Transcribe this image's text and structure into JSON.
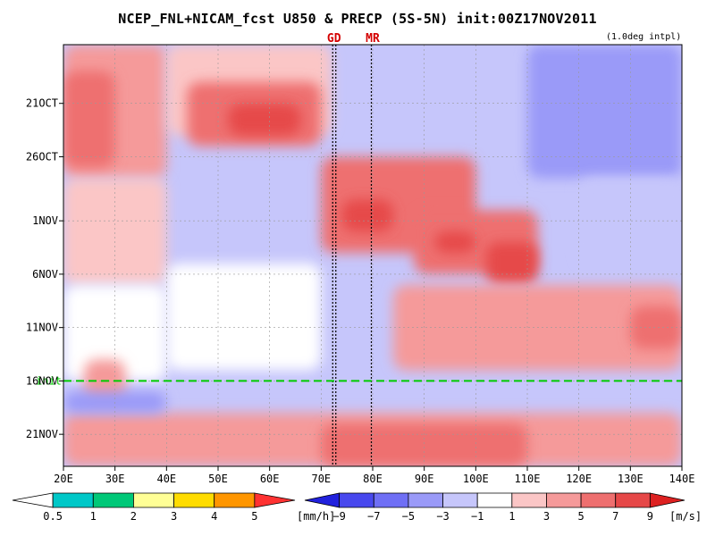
{
  "chart_data": {
    "type": "heatmap",
    "title": "NCEP_FNL+NICAM_fcst U850 & PRECP (5S-5N) init:00Z17NOV2011",
    "subtitle": "(1.0deg intpl)",
    "x_axis": {
      "ticks": [
        "20E",
        "30E",
        "40E",
        "50E",
        "60E",
        "70E",
        "80E",
        "90E",
        "100E",
        "110E",
        "120E",
        "130E",
        "140E"
      ],
      "range": [
        20,
        140
      ],
      "units": "longitude (deg E)"
    },
    "y_axis": {
      "ticks": [
        "21OCT",
        "26OCT",
        "1NOV",
        "6NOV",
        "11NOV",
        "16NOV",
        "21NOV"
      ],
      "range_days_from_oct1": [
        15.5,
        55
      ],
      "direction": "time increasing downward"
    },
    "init_line": {
      "label": "init",
      "date": "17NOV2011 00Z",
      "color": "#00cc00"
    },
    "site_markers": [
      {
        "label": "GD",
        "lon": 72.5
      },
      {
        "label": "MR",
        "lon": 80
      }
    ],
    "wind_colorbar": {
      "labels": [
        "−9",
        "−7",
        "−5",
        "−3",
        "−1",
        "1",
        "3",
        "5",
        "7",
        "9"
      ],
      "unit": "[m/s]",
      "colors": [
        "#2121dd",
        "#4848ee",
        "#6f6ff5",
        "#9a9af8",
        "#c6c6fb",
        "#ffffff",
        "#fbc6c6",
        "#f59a9a",
        "#ee6f6f",
        "#e64848",
        "#dd2121"
      ]
    },
    "precip_colorbar": {
      "labels": [
        "0.5",
        "1",
        "2",
        "3",
        "4",
        "5"
      ],
      "unit": "[mm/h]",
      "colors": [
        "#ffffff",
        "#00c8c8",
        "#00c878",
        "#ffff96",
        "#ffdc00",
        "#ff9600",
        "#ff3232"
      ]
    },
    "grid": true
  }
}
